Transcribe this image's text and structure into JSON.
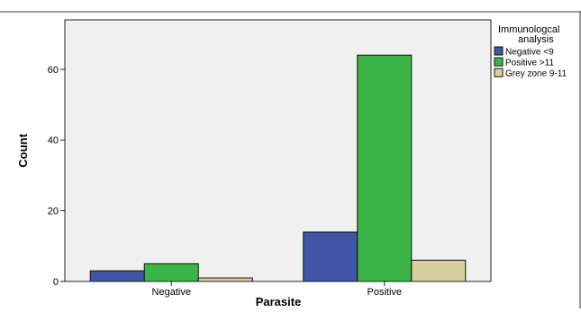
{
  "chart_data": {
    "type": "bar",
    "xlabel": "Parasite",
    "ylabel": "Count",
    "categories": [
      "Negative",
      "Positive"
    ],
    "series": [
      {
        "name": "Negative <9",
        "values": [
          3,
          14
        ],
        "color": "#3f55a6"
      },
      {
        "name": "Positive >11",
        "values": [
          5,
          64
        ],
        "color": "#3cb548"
      },
      {
        "name": "Grey zone 9-11",
        "values": [
          1,
          6
        ],
        "color": "#d9d0a0"
      }
    ],
    "ylim": [
      0,
      74
    ],
    "yticks": [
      0,
      20,
      40,
      60
    ],
    "grid": false,
    "legend": {
      "title_lines": [
        "Immunologcal",
        "analysis"
      ],
      "placement": "right"
    }
  }
}
